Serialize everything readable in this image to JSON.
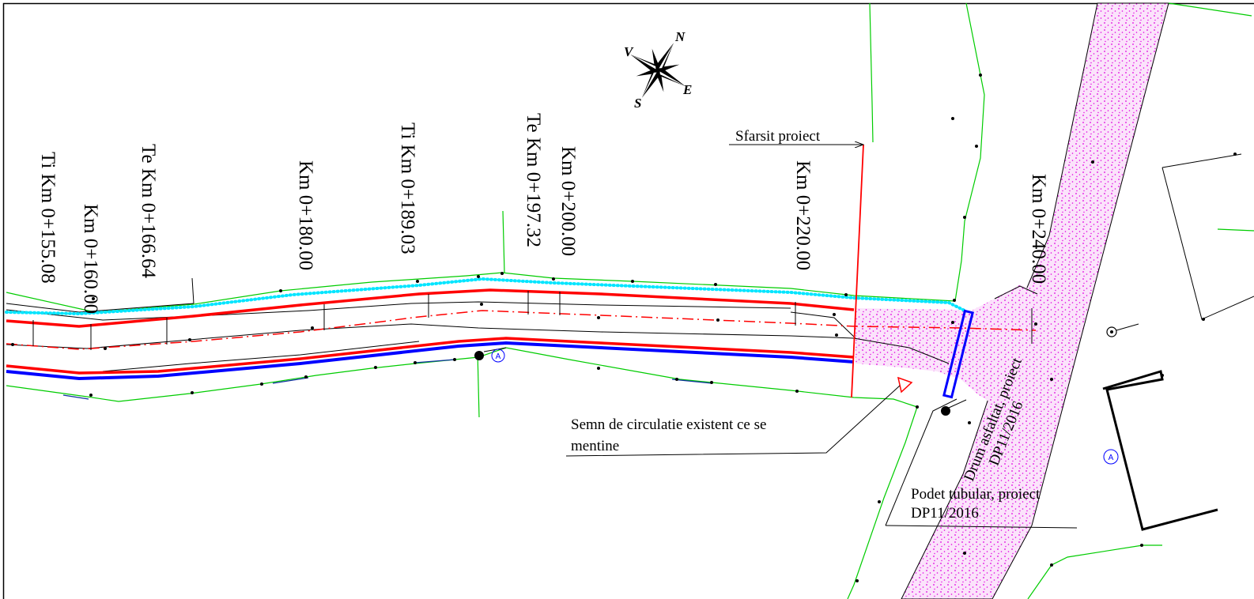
{
  "labels": {
    "km_155": "Ti Km 0+155.08",
    "km_160": "Km 0+160.00",
    "km_166": "Te Km 0+166.64",
    "km_180": "Km 0+180.00",
    "km_189": "Ti Km 0+189.03",
    "km_197": "Te Km 0+197.32",
    "km_200": "Km 0+200.00",
    "km_220": "Km 0+220.00",
    "km_240": "Km 0+240.00",
    "sfarsit": "Sfarsit proiect",
    "semn_line1": "Semn de circulatie existent ce se",
    "semn_line2": "mentine",
    "podet_line1": "Podet tubular, proiect",
    "podet_line2": "DP11/2016",
    "drum_line1": "Drum asfaltat, proiect",
    "drum_line2": "DP11/2016"
  },
  "compass": {
    "n": "N",
    "e": "E",
    "s": "S",
    "v": "V"
  },
  "symbols": {
    "sign_marker": "A"
  },
  "colors": {
    "axis_red": "#ff0000",
    "edge_blue": "#0000ff",
    "ditch_cyan": "#00e5ff",
    "boundary_green": "#00cc00",
    "road_magenta": "#ff00ff"
  }
}
